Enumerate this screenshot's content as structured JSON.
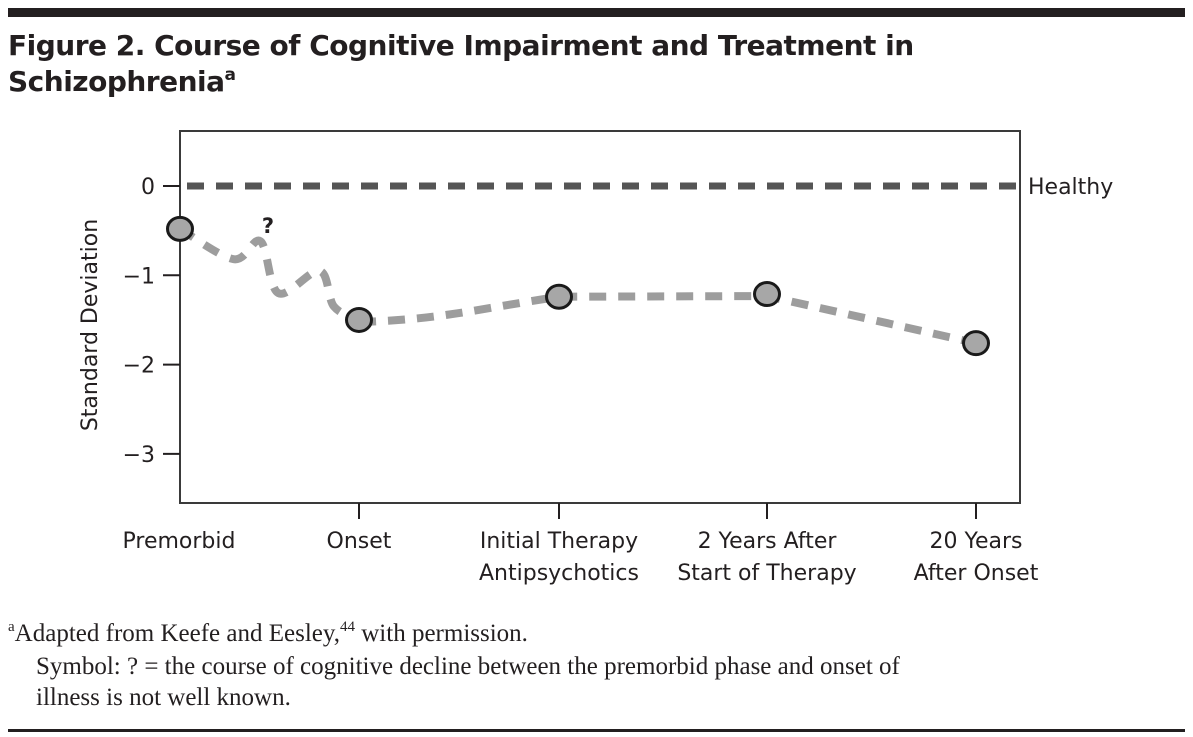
{
  "figure": {
    "title": "Figure 2. Course of Cognitive Impairment and Treatment in Schizophrenia",
    "title_line1": "Figure 2. Course of Cognitive Impairment and Treatment in",
    "title_line2": "Schizophrenia",
    "title_superscript": "a"
  },
  "chart_data": {
    "type": "line",
    "title": "Course of Cognitive Impairment and Treatment in Schizophrenia",
    "xlabel": "",
    "ylabel": "Standard Deviation",
    "ylim": [
      -3.55,
      0.6
    ],
    "yticks": [
      0,
      -1,
      -2,
      -3
    ],
    "ytick_labels": [
      "0",
      "−1",
      "−2",
      "−3"
    ],
    "grid": false,
    "categories": [
      [
        "Premorbid"
      ],
      [
        "Onset"
      ],
      [
        "Initial Therapy",
        "Antipsychotics"
      ],
      [
        "2 Years After",
        "Start of Therapy"
      ],
      [
        "20 Years",
        "After Onset"
      ]
    ],
    "category_positions": [
      0,
      1,
      2,
      3,
      4
    ],
    "xlim": [
      0,
      4.2
    ],
    "series": [
      {
        "name": "Schizophrenia",
        "style": "dashed-light-gray",
        "color": "#9d9d9d",
        "marker_fill": "#a7a7a7",
        "marker_edge": "#1a1a1a",
        "points": [
          {
            "x": 0,
            "y": -0.48
          },
          {
            "x": 1,
            "y": -1.5
          },
          {
            "x": 2,
            "y": -1.24
          },
          {
            "x": 3,
            "y": -1.21
          },
          {
            "x": 4,
            "y": -1.76
          }
        ],
        "uncertain_path": [
          {
            "x": 0,
            "y": -0.48
          },
          {
            "x": 0.3,
            "y": -0.82
          },
          {
            "x": 0.45,
            "y": -0.62
          },
          {
            "x": 0.55,
            "y": -1.2
          },
          {
            "x": 0.78,
            "y": -0.95
          },
          {
            "x": 0.86,
            "y": -1.35
          },
          {
            "x": 1,
            "y": -1.5
          }
        ]
      },
      {
        "name": "Healthy",
        "style": "dashed-dark-gray",
        "color": "#555555",
        "points": [
          {
            "x": 0,
            "y": 0
          },
          {
            "x": 4.2,
            "y": 0
          }
        ]
      }
    ],
    "annotations": [
      {
        "text": "?",
        "x": 0.48,
        "y": -0.45
      },
      {
        "text": "Healthy",
        "x": 4.2,
        "y": 0,
        "placement": "right-of-plot"
      }
    ]
  },
  "footnotes": {
    "marker": "a",
    "line1_text": "Adapted from Keefe and Eesley,",
    "line1_ref": "44",
    "line1_tail": " with permission.",
    "line2": "Symbol: ? = the course of cognitive decline between the premorbid phase and onset of",
    "line3": "illness is not well known."
  }
}
